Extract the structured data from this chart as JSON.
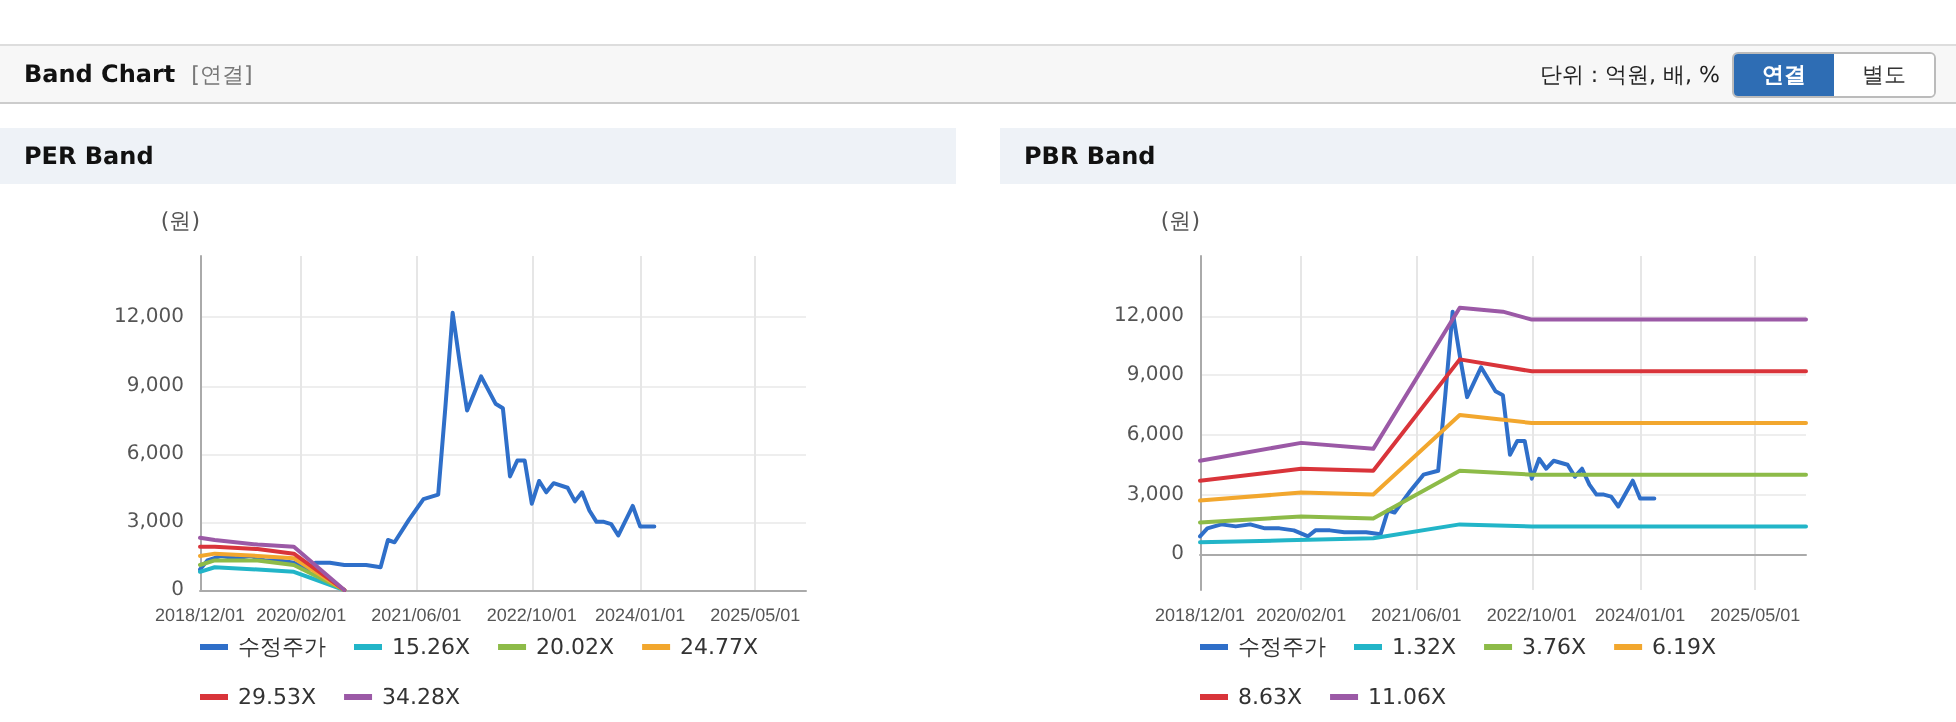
{
  "chart_data": [
    {
      "type": "other",
      "title": "Band Chart",
      "annotations": [
        "[연결]",
        "단위 : 억원, 배, %",
        "연결",
        "별도"
      ]
    },
    {
      "type": "line",
      "title": "PER Band",
      "ylabel": "(원)",
      "xlim": [
        "2018-12-01",
        "2025-12-01"
      ],
      "ylim": [
        0,
        14700
      ],
      "xticks": [
        {
          "value": "2018-12-01",
          "label": "2018/12/01"
        },
        {
          "value": "2020-02-01",
          "label": "2020/02/01"
        },
        {
          "value": "2021-06-01",
          "label": "2021/06/01"
        },
        {
          "value": "2022-10-01",
          "label": "2022/10/01"
        },
        {
          "value": "2024-01-01",
          "label": "2024/01/01"
        },
        {
          "value": "2025-05-01",
          "label": "2025/05/01"
        }
      ],
      "yticks": [
        0,
        {
          "value": 3000,
          "label": "3,000"
        },
        {
          "value": 6000,
          "label": "6,000"
        },
        {
          "value": 9000,
          "label": "9,000"
        },
        {
          "value": 12000,
          "label": "12,000"
        }
      ],
      "grid": true,
      "legend": "bottom",
      "marker": "none",
      "line_style": "solid",
      "series": [
        {
          "name": "수정주가",
          "color": "#2f6fc9",
          "x": [
            "2018-12-01",
            "2019-01-01",
            "2019-03-01",
            "2019-05-01",
            "2019-07-01",
            "2019-09-01",
            "2019-11-01",
            "2020-01-01",
            "2020-03-01",
            "2020-04-01",
            "2020-06-01",
            "2020-08-01",
            "2020-11-01",
            "2021-01-01",
            "2021-02-01",
            "2021-03-01",
            "2021-05-01",
            "2021-07-01",
            "2021-09-01",
            "2021-10-01",
            "2021-11-01",
            "2021-12-01",
            "2022-01-01",
            "2022-03-01",
            "2022-05-01",
            "2022-06-01",
            "2022-07-01",
            "2022-08-01",
            "2022-09-01",
            "2022-10-01",
            "2022-11-01",
            "2022-12-01",
            "2023-01-01",
            "2023-03-01",
            "2023-04-01",
            "2023-05-01",
            "2023-06-01",
            "2023-07-01",
            "2023-08-01",
            "2023-09-01",
            "2023-10-01",
            "2023-12-01",
            "2024-01-01",
            "2024-03-01"
          ],
          "values": [
            900,
            1300,
            1500,
            1400,
            1500,
            1300,
            1300,
            1200,
            900,
            1200,
            1200,
            1100,
            1100,
            1000,
            2200,
            2100,
            3100,
            4000,
            4200,
            8000,
            12200,
            10000,
            7900,
            9400,
            8200,
            8000,
            5000,
            5700,
            5700,
            3800,
            4800,
            4300,
            4700,
            4500,
            3900,
            4300,
            3500,
            3000,
            3000,
            2900,
            2400,
            3700,
            2800,
            2800
          ]
        },
        {
          "name": "15.26X",
          "color": "#22b5c8",
          "x": [
            "2018-12-01",
            "2019-02-01",
            "2019-08-01",
            "2020-01-01",
            "2020-08-01"
          ],
          "values": [
            800,
            1000,
            900,
            800,
            0
          ]
        },
        {
          "name": "20.02X",
          "color": "#8dbb48",
          "x": [
            "2018-12-01",
            "2019-02-01",
            "2019-08-01",
            "2020-01-01",
            "2020-08-01"
          ],
          "values": [
            1100,
            1300,
            1300,
            1100,
            0
          ]
        },
        {
          "name": "24.77X",
          "color": "#f2a72e",
          "x": [
            "2018-12-01",
            "2019-02-01",
            "2019-08-01",
            "2020-01-01",
            "2020-08-01"
          ],
          "values": [
            1500,
            1600,
            1500,
            1400,
            0
          ]
        },
        {
          "name": "29.53X",
          "color": "#d9343a",
          "x": [
            "2018-12-01",
            "2019-02-01",
            "2019-08-01",
            "2020-01-01",
            "2020-08-01"
          ],
          "values": [
            1900,
            1900,
            1800,
            1600,
            0
          ]
        },
        {
          "name": "34.28X",
          "color": "#9b59a6",
          "x": [
            "2018-12-01",
            "2019-02-01",
            "2019-08-01",
            "2020-01-01",
            "2020-08-01"
          ],
          "values": [
            2300,
            2200,
            2000,
            1900,
            0
          ]
        }
      ]
    },
    {
      "type": "line",
      "title": "PBR Band",
      "ylabel": "(원)",
      "xlim": [
        "2018-12-01",
        "2025-12-01"
      ],
      "ylim": [
        -1800,
        15000
      ],
      "xticks": [
        {
          "value": "2018-12-01",
          "label": "2018/12/01"
        },
        {
          "value": "2020-02-01",
          "label": "2020/02/01"
        },
        {
          "value": "2021-06-01",
          "label": "2021/06/01"
        },
        {
          "value": "2022-10-01",
          "label": "2022/10/01"
        },
        {
          "value": "2024-01-01",
          "label": "2024/01/01"
        },
        {
          "value": "2025-05-01",
          "label": "2025/05/01"
        }
      ],
      "yticks": [
        0,
        {
          "value": 3000,
          "label": "3,000"
        },
        {
          "value": 6000,
          "label": "6,000"
        },
        {
          "value": 9000,
          "label": "9,000"
        },
        {
          "value": 12000,
          "label": "12,000"
        }
      ],
      "grid": true,
      "legend": "bottom",
      "marker": "none",
      "line_style": "solid",
      "series": [
        {
          "name": "수정주가",
          "color": "#2f6fc9",
          "x": [
            "2018-12-01",
            "2019-01-01",
            "2019-03-01",
            "2019-05-01",
            "2019-07-01",
            "2019-09-01",
            "2019-11-01",
            "2020-01-01",
            "2020-03-01",
            "2020-04-01",
            "2020-06-01",
            "2020-08-01",
            "2020-11-01",
            "2021-01-01",
            "2021-02-01",
            "2021-03-01",
            "2021-05-01",
            "2021-07-01",
            "2021-09-01",
            "2021-10-01",
            "2021-11-01",
            "2021-12-01",
            "2022-01-01",
            "2022-03-01",
            "2022-05-01",
            "2022-06-01",
            "2022-07-01",
            "2022-08-01",
            "2022-09-01",
            "2022-10-01",
            "2022-11-01",
            "2022-12-01",
            "2023-01-01",
            "2023-03-01",
            "2023-04-01",
            "2023-05-01",
            "2023-06-01",
            "2023-07-01",
            "2023-08-01",
            "2023-09-01",
            "2023-10-01",
            "2023-12-01",
            "2024-01-01",
            "2024-03-01"
          ],
          "values": [
            900,
            1300,
            1500,
            1400,
            1500,
            1300,
            1300,
            1200,
            900,
            1200,
            1200,
            1100,
            1100,
            1000,
            2200,
            2100,
            3100,
            4000,
            4200,
            8000,
            12200,
            10000,
            7900,
            9400,
            8200,
            8000,
            5000,
            5700,
            5700,
            3800,
            4800,
            4300,
            4700,
            4500,
            3900,
            4300,
            3500,
            3000,
            3000,
            2900,
            2400,
            3700,
            2800,
            2800
          ]
        },
        {
          "name": "1.32X",
          "color": "#22b5c8",
          "x": [
            "2018-12-01",
            "2019-12-01",
            "2020-12-01",
            "2021-12-01",
            "2022-10-01",
            "2025-12-01"
          ],
          "values": [
            600,
            700,
            800,
            1500,
            1400,
            1400
          ]
        },
        {
          "name": "3.76X",
          "color": "#8dbb48",
          "x": [
            "2018-12-01",
            "2020-02-01",
            "2020-12-01",
            "2021-12-01",
            "2022-10-01",
            "2025-12-01"
          ],
          "values": [
            1600,
            1900,
            1800,
            4200,
            4000,
            4000
          ]
        },
        {
          "name": "6.19X",
          "color": "#f2a72e",
          "x": [
            "2018-12-01",
            "2020-02-01",
            "2020-12-01",
            "2021-12-01",
            "2022-10-01",
            "2025-12-01"
          ],
          "values": [
            2700,
            3100,
            3000,
            7000,
            6600,
            6600
          ]
        },
        {
          "name": "8.63X",
          "color": "#d9343a",
          "x": [
            "2018-12-01",
            "2020-02-01",
            "2020-12-01",
            "2021-12-01",
            "2022-10-01",
            "2025-12-01"
          ],
          "values": [
            3700,
            4300,
            4200,
            9800,
            9200,
            9200
          ]
        },
        {
          "name": "11.06X",
          "color": "#9b59a6",
          "x": [
            "2018-12-01",
            "2020-02-01",
            "2020-12-01",
            "2021-12-01",
            "2022-06-01",
            "2022-10-01",
            "2025-12-01"
          ],
          "values": [
            4700,
            5600,
            5300,
            12400,
            12200,
            11800,
            11800
          ]
        }
      ]
    }
  ]
}
